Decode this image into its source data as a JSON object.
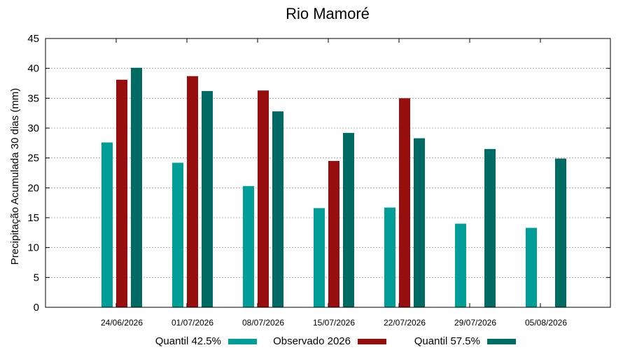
{
  "chart_data": {
    "type": "bar",
    "title": "Rio Mamoré",
    "xlabel": "",
    "ylabel": "Precipitação Acumulada 30 dias (mm)",
    "ylim": [
      0,
      45
    ],
    "yticks": [
      0,
      5,
      10,
      15,
      20,
      25,
      30,
      35,
      40,
      45
    ],
    "grid": true,
    "legend_position": "bottom",
    "categories": [
      "24/06/2026",
      "01/07/2026",
      "08/07/2026",
      "15/07/2026",
      "22/07/2026",
      "29/07/2026",
      "05/08/2026"
    ],
    "series": [
      {
        "name": "Quantil 42.5%",
        "color": "#009e96",
        "values": [
          27.6,
          24.2,
          20.3,
          16.6,
          16.7,
          14.0,
          13.3
        ]
      },
      {
        "name": "Observado 2026",
        "color": "#960e0e",
        "values": [
          38.1,
          38.7,
          36.3,
          24.5,
          35.0,
          null,
          null
        ]
      },
      {
        "name": "Quantil 57.5%",
        "color": "#006b62",
        "values": [
          40.1,
          36.2,
          32.8,
          29.2,
          28.3,
          26.5,
          24.9
        ]
      }
    ]
  }
}
